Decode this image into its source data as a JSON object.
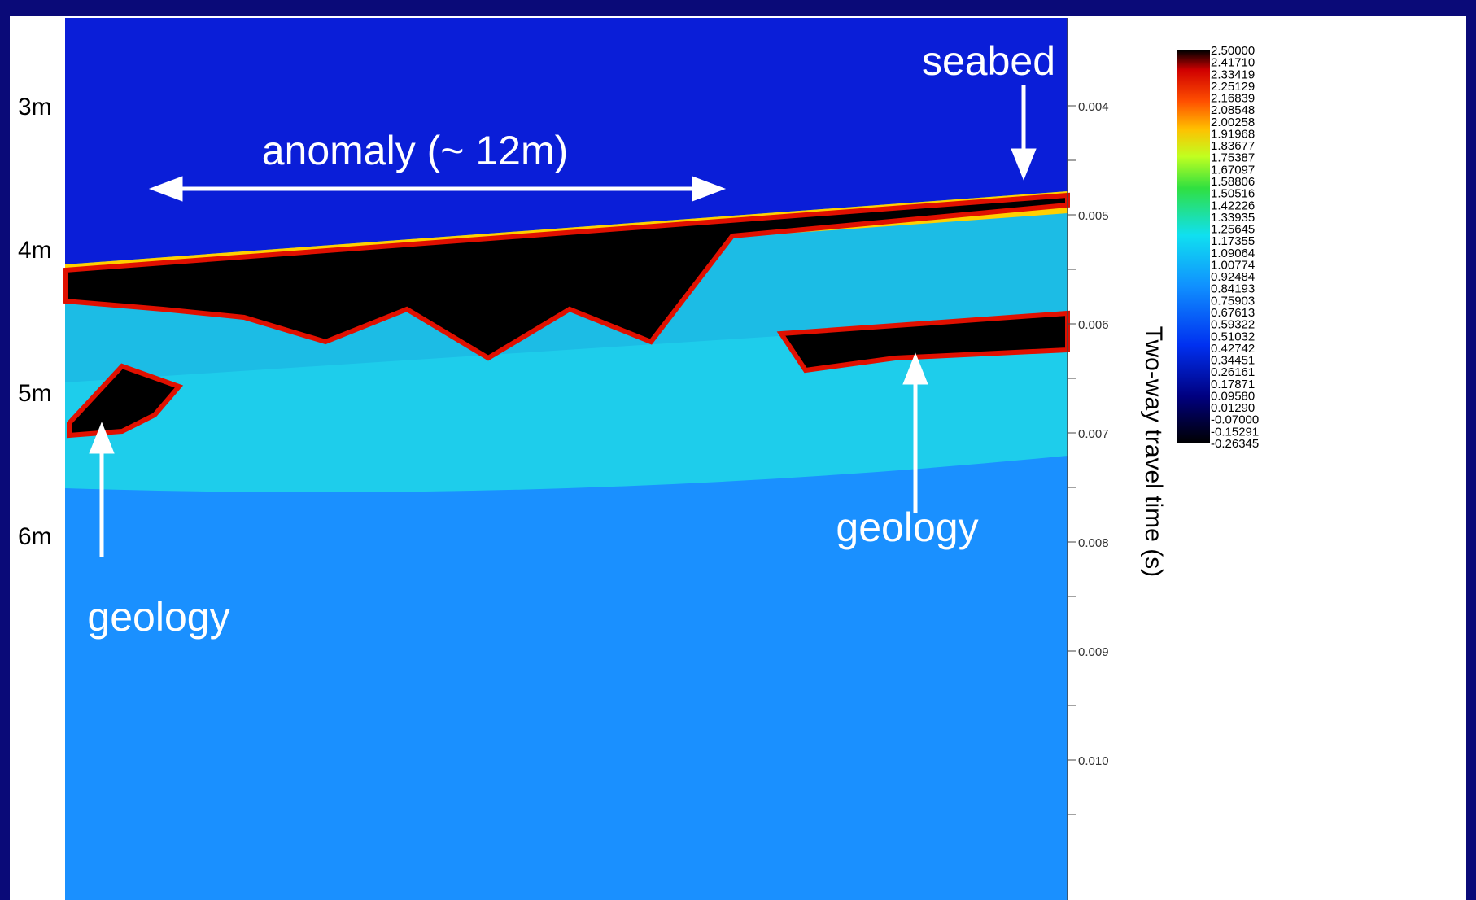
{
  "annotations": {
    "seabed": "seabed",
    "anomaly": "anomaly (~ 12m)",
    "geology_left": "geology",
    "geology_right": "geology"
  },
  "depth_labels": [
    "3m",
    "4m",
    "5m",
    "6m"
  ],
  "right_axis": {
    "label": "Two-way travel time (s)",
    "ticks": [
      "0.004",
      "0.005",
      "0.006",
      "0.007",
      "0.008",
      "0.009",
      "0.010"
    ]
  },
  "colorbar": {
    "labels": [
      "2.50000",
      "2.41710",
      "2.33419",
      "2.25129",
      "2.16839",
      "2.08548",
      "2.00258",
      "1.91968",
      "1.83677",
      "1.75387",
      "1.67097",
      "1.58806",
      "1.50516",
      "1.42226",
      "1.33935",
      "1.25645",
      "1.17355",
      "1.09064",
      "1.00774",
      "0.92484",
      "0.84193",
      "0.75903",
      "0.67613",
      "0.59322",
      "0.51032",
      "0.42742",
      "0.34451",
      "0.26161",
      "0.17871",
      "0.09580",
      "0.01290",
      "-0.07000",
      "-0.15291",
      "-0.26345"
    ]
  }
}
